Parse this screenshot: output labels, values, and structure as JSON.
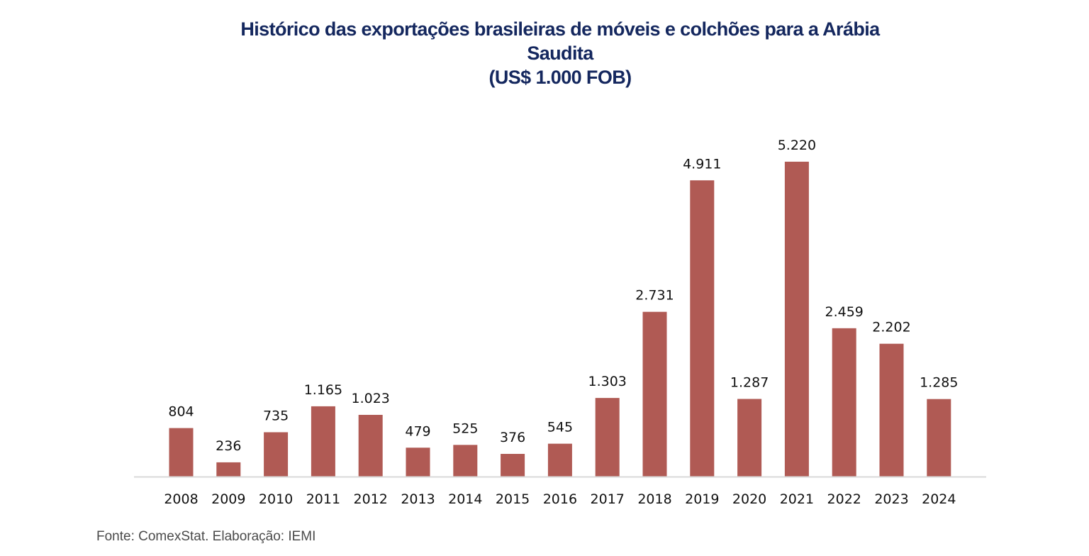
{
  "chart_data": {
    "type": "bar",
    "title_lines": [
      "Histórico das exportações brasileiras de móveis e colchões para a Arábia",
      "Saudita",
      "(US$ 1.000 FOB)"
    ],
    "xlabel": "",
    "ylabel": "",
    "categories": [
      "2008",
      "2009",
      "2010",
      "2011",
      "2012",
      "2013",
      "2014",
      "2015",
      "2016",
      "2017",
      "2018",
      "2019",
      "2020",
      "2021",
      "2022",
      "2023",
      "2024"
    ],
    "values": [
      804,
      236,
      735,
      1165,
      1023,
      479,
      525,
      376,
      545,
      1303,
      2731,
      4911,
      1287,
      5220,
      2459,
      2202,
      1285
    ],
    "data_labels": [
      "804",
      "236",
      "735",
      "1.165",
      "1.023",
      "479",
      "525",
      "376",
      "545",
      "1.303",
      "2.731",
      "4.911",
      "1.287",
      "5.220",
      "2.459",
      "2.202",
      "1.285"
    ],
    "ylim": [
      0,
      5220
    ],
    "grid": false,
    "legend": "none",
    "bar_color": "#b05a54",
    "axis_color": "#d9d9d9"
  },
  "source": "Fonte: ComexStat. Elaboração: IEMI"
}
